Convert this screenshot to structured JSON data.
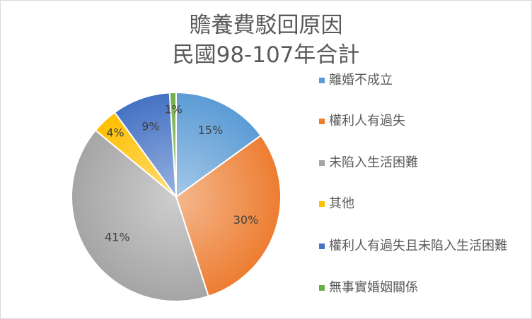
{
  "chart_data": {
    "type": "pie",
    "title": [
      "贍養費駁回原因",
      "民國98-107年合計"
    ],
    "categories": [
      "離婚不成立",
      "權利人有過失",
      "未陷入生活困難",
      "其他",
      "權利人有過失且未陷入生活困難",
      "無事實婚姻關係"
    ],
    "values": [
      15,
      30,
      41,
      4,
      9,
      1
    ],
    "data_labels": [
      "15%",
      "30%",
      "41%",
      "4%",
      "9%",
      "1%"
    ],
    "colors": [
      "#5B9BD5",
      "#ED7D31",
      "#A5A5A5",
      "#FFC000",
      "#4472C4",
      "#70AD47"
    ],
    "legend": "right"
  }
}
